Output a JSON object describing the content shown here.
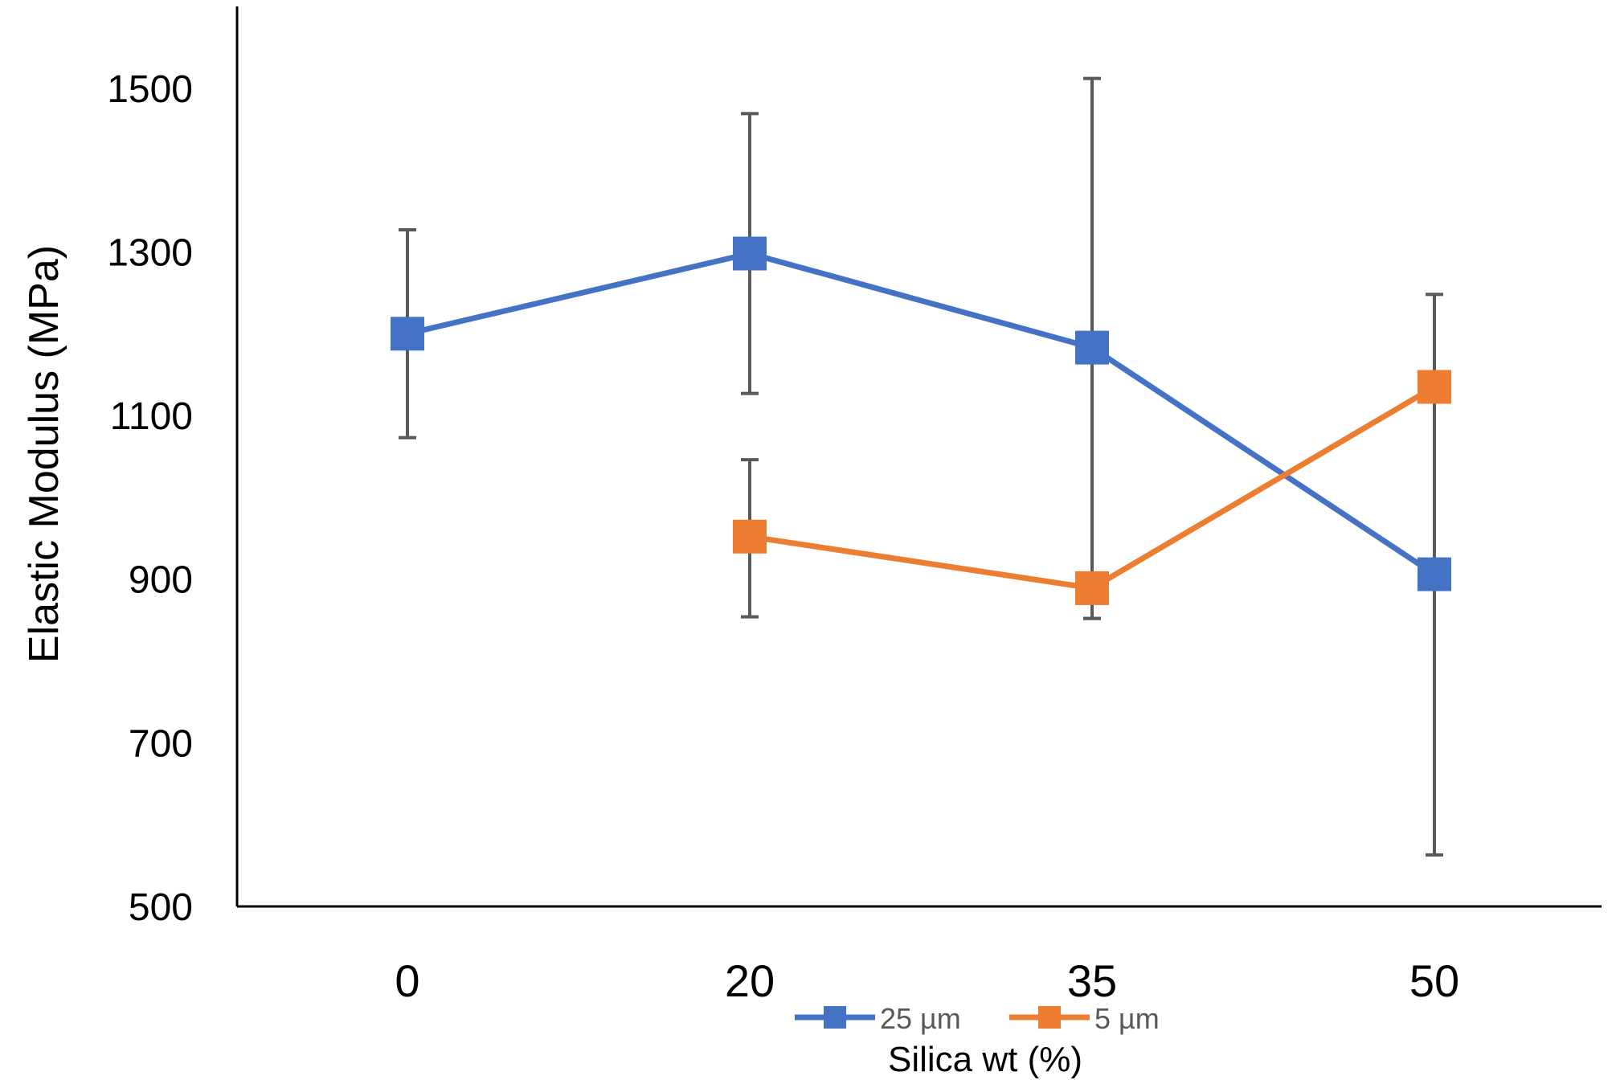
{
  "chart_data": {
    "type": "line",
    "title": "",
    "xlabel": "Silica wt (%)",
    "ylabel": "Elastic Modulus (MPa)",
    "categories": [
      "0",
      "20",
      "35",
      "50"
    ],
    "ylim": [
      500,
      1600
    ],
    "yticks": [
      500,
      700,
      900,
      1100,
      1300,
      1500
    ],
    "grid": false,
    "legend_position": "bottom",
    "series": [
      {
        "name": "25 µm",
        "color": "#4472C4",
        "marker": "square",
        "values": [
          1200,
          1298,
          1183,
          906
        ],
        "error_low": [
          1073,
          1127,
          852,
          563
        ],
        "error_high": [
          1327,
          1469,
          1512,
          1248
        ]
      },
      {
        "name": "5 µm",
        "color": "#ED7D31",
        "marker": "square",
        "values": [
          null,
          952,
          889,
          1135
        ],
        "error_low": [
          null,
          854,
          852,
          null
        ],
        "error_high": [
          null,
          1046,
          null,
          null
        ]
      }
    ],
    "error_bar_color": "#595959"
  }
}
